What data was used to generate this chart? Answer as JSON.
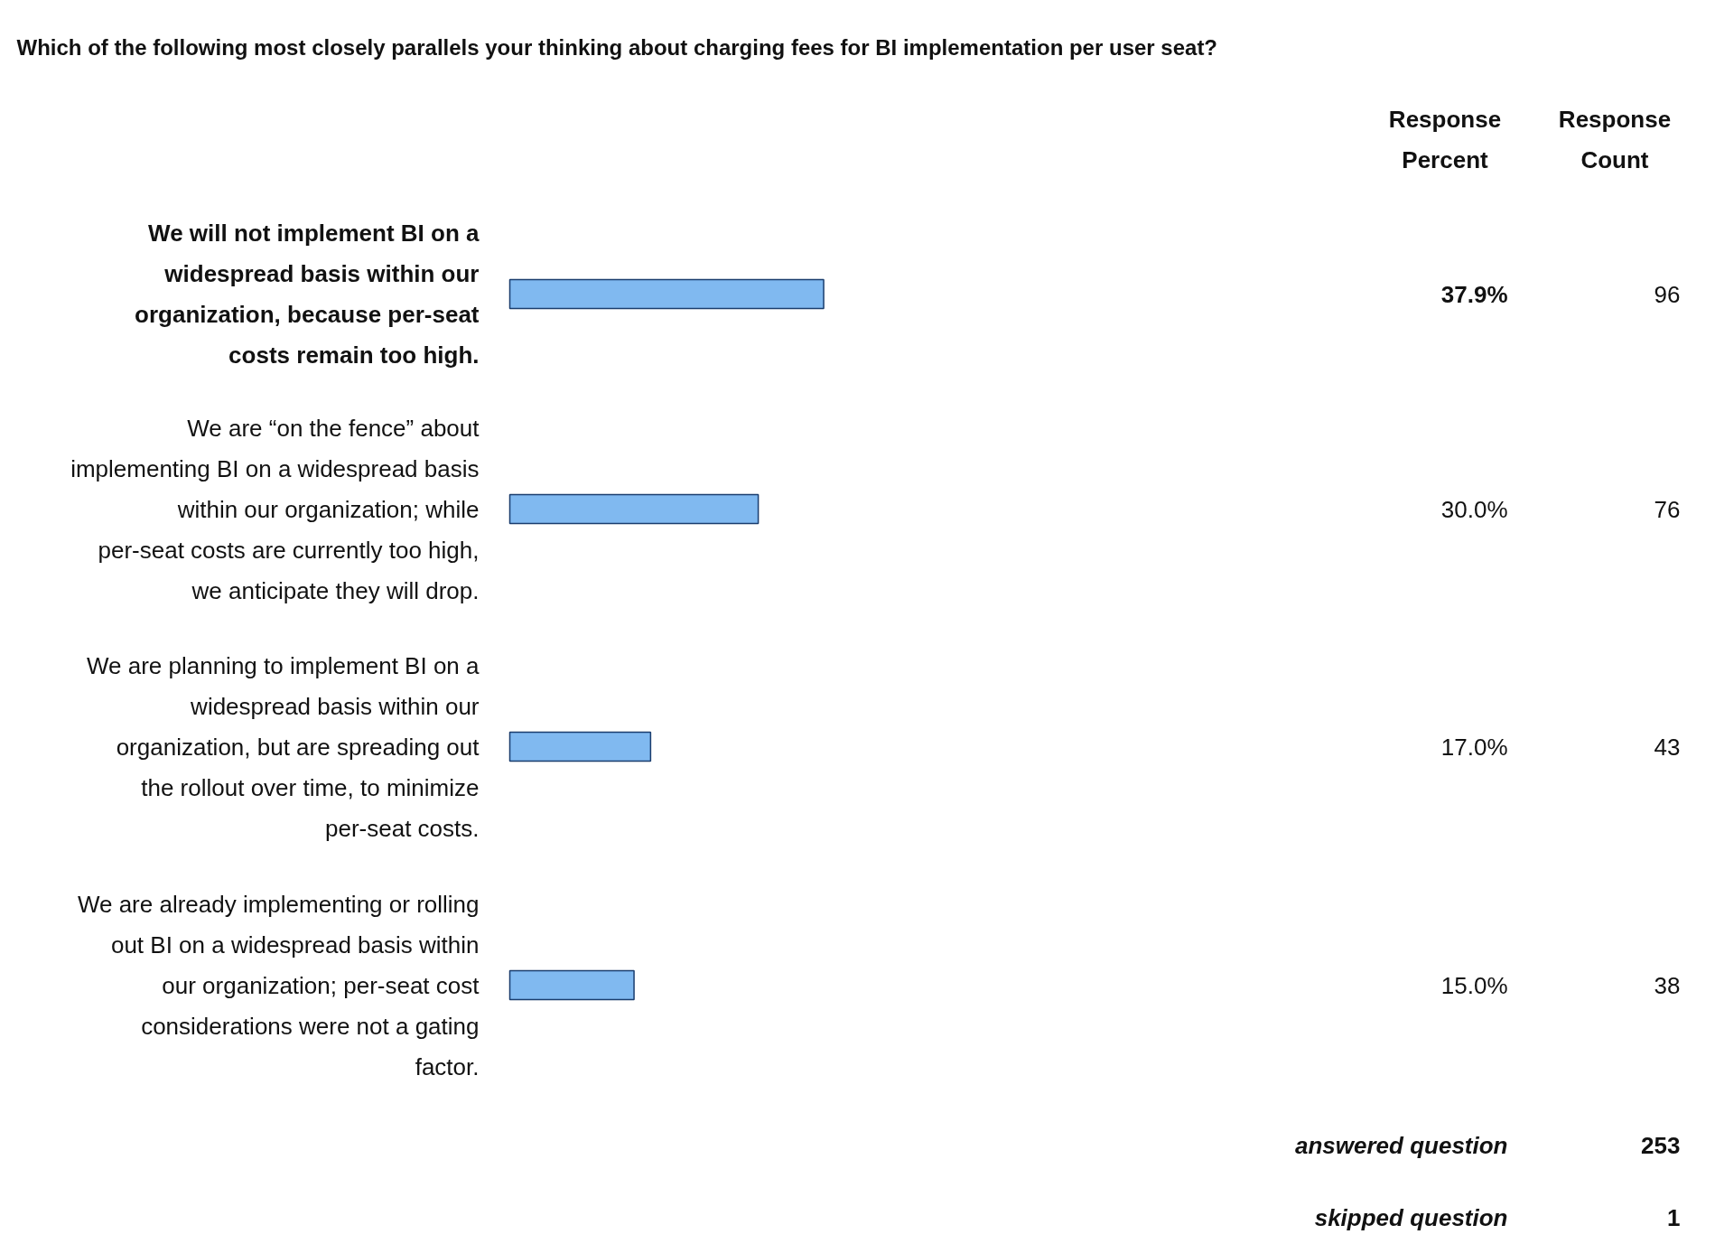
{
  "chart_data": {
    "type": "bar",
    "orientation": "horizontal",
    "title": "Which of the following most closely parallels your thinking about charging fees for BI implementation per user seat?",
    "categories": [
      "We will not implement BI on a widespread basis within our organization, because per-seat costs remain too high.",
      "We are “on the fence” about implementing BI on a widespread basis within our organization; while per-seat costs are currently too high, we anticipate they will drop.",
      "We are planning to implement BI on a widespread basis within our organization, but are spreading out the rollout over time, to minimize per-seat costs.",
      "We are already implementing or rolling out BI on a widespread basis within our organization; per-seat cost considerations were not a gating factor."
    ],
    "values": [
      37.9,
      30.0,
      17.0,
      15.0
    ],
    "value_labels": [
      "37.9%",
      "30.0%",
      "17.0%",
      "15.0%"
    ],
    "color": "#80b9f0",
    "tick_labels": false,
    "annotations": [
      "Response Percent",
      "Response Count",
      "96",
      "76",
      "43",
      "38",
      "answered question",
      "253",
      "skipped question",
      "1"
    ]
  }
}
